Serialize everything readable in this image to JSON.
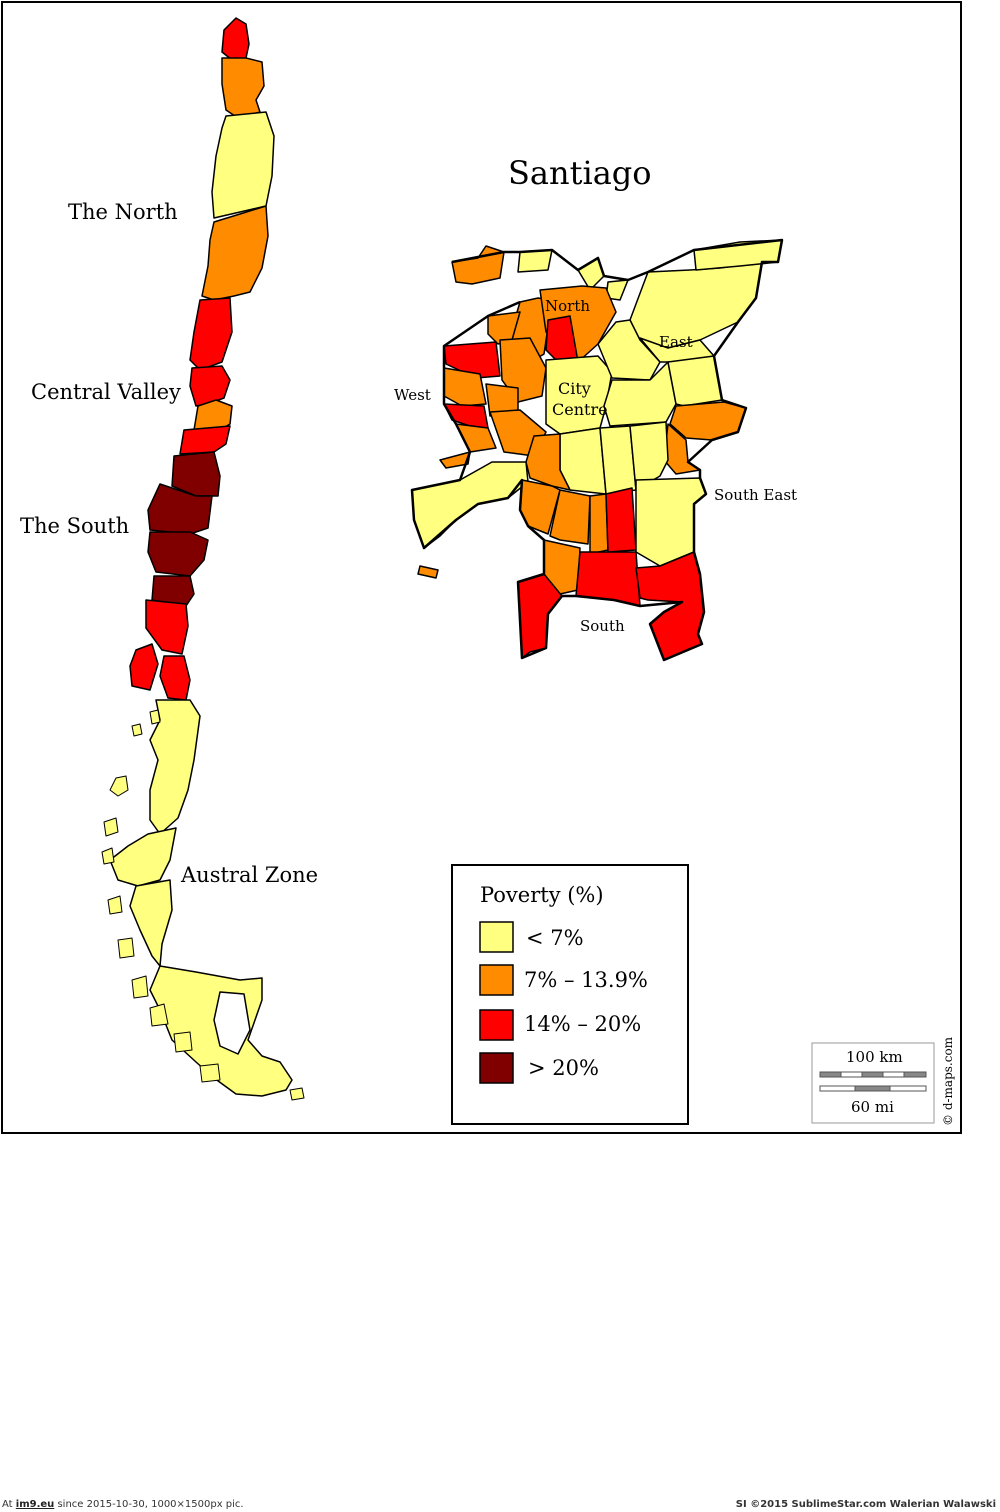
{
  "colors": {
    "lt7": "#FFFF80",
    "c7to13": "#FF8C00",
    "c14to20": "#FF0000",
    "gt20": "#800000",
    "border": "#000000",
    "background": "#FFFFFF"
  },
  "map": {
    "region_labels": {
      "north": "The North",
      "central": "Central Valley",
      "south": "The South",
      "austral": "Austral Zone"
    },
    "santiago": {
      "title": "Santiago",
      "labels": {
        "north": "North",
        "east": "East",
        "west": "West",
        "city_centre_1": "City",
        "city_centre_2": "Centre",
        "south_east": "South East",
        "south": "South"
      }
    },
    "legend": {
      "title": "Poverty (%)",
      "items": [
        {
          "label": "< 7%",
          "color": "#FFFF80"
        },
        {
          "label": "7% – 13.9%",
          "color": "#FF8C00"
        },
        {
          "label": "14% – 20%",
          "color": "#FF0000"
        },
        {
          "label": "> 20%",
          "color": "#800000"
        }
      ]
    },
    "scale": {
      "km_label": "100 km",
      "mi_label": "60 mi"
    },
    "credit": "© d-maps.com"
  },
  "footer": {
    "left_prefix": "At ",
    "left_link": "im9.eu",
    "left_suffix": " since 2015-10-30, 1000×1500px pic.",
    "right": "SI ©2015 SublimeStar.com Walerian Walawski"
  }
}
